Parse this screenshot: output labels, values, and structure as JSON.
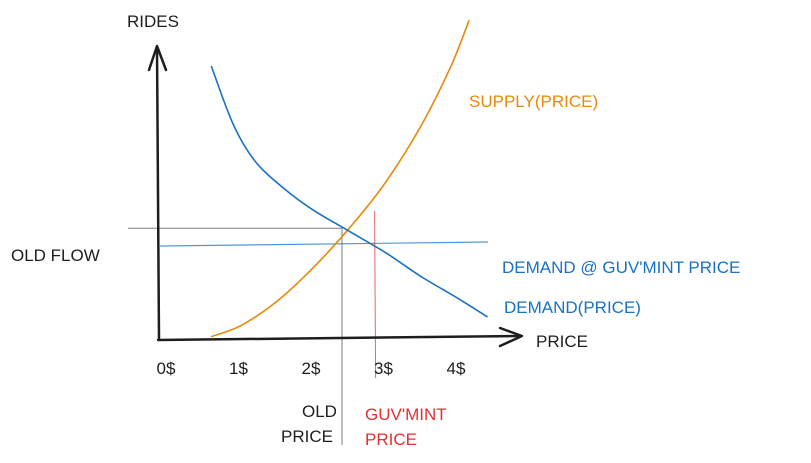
{
  "chart_data": {
    "type": "line",
    "xlabel": "PRICE",
    "ylabel": "RIDES",
    "x_ticks": [
      "0$",
      "1$",
      "2$",
      "3$",
      "4$"
    ],
    "xlim": [
      0,
      4.5
    ],
    "ylim": [
      0,
      10
    ],
    "grid": false,
    "series": [
      {
        "name": "SUPPLY(PRICE)",
        "color": "#e8890c",
        "x": [
          0.6,
          1.0,
          1.5,
          2.0,
          2.5,
          3.0,
          3.5,
          3.9,
          4.15
        ],
        "y": [
          0.05,
          0.4,
          1.2,
          2.3,
          3.6,
          5.1,
          7.0,
          8.9,
          10.4
        ]
      },
      {
        "name": "DEMAND(PRICE)",
        "color": "#1971c2",
        "x": [
          0.6,
          0.9,
          1.2,
          1.6,
          2.0,
          2.5,
          3.0,
          3.5,
          4.0,
          4.4
        ],
        "y": [
          8.9,
          7.0,
          5.8,
          4.9,
          4.2,
          3.5,
          2.8,
          2.0,
          1.3,
          0.7
        ]
      }
    ],
    "annotations": {
      "old_flow": "OLD FLOW",
      "old_price": [
        "OLD",
        "PRICE"
      ],
      "guv_price": [
        "GUV'MINT",
        "PRICE"
      ],
      "demand_at_guv": "DEMAND @ GUV'MINT PRICE",
      "old_price_value": 2.4,
      "old_flow_value": 3.6,
      "guv_price_value": 2.85,
      "demand_at_guv_value": 3.05
    },
    "colors": {
      "axis": "#1e1e1e",
      "supply": "#e8890c",
      "demand": "#1971c2",
      "guv": "#e03131",
      "old": "#5c5c5c"
    }
  }
}
